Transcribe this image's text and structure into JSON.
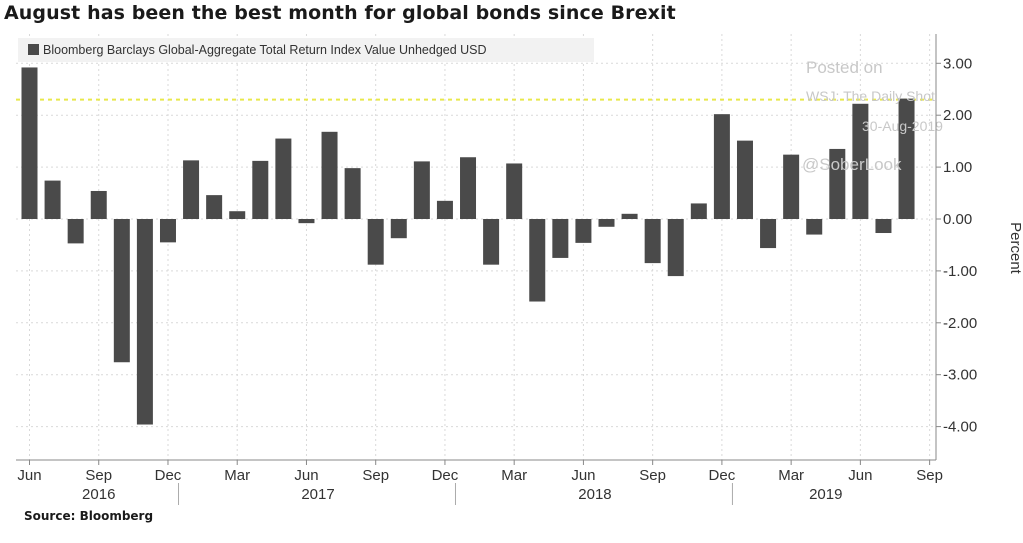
{
  "title": "August has been the best month for global bonds since Brexit",
  "source": "Source: Bloomberg",
  "watermark": {
    "line1": "Posted on",
    "line2": "WSJ: The Daily Shot",
    "line3": "30-Aug-2019",
    "line4": "@SoberLook"
  },
  "colors": {
    "bar": "#4a4a4a",
    "reference_line": "#e8e84a",
    "grid": "#d9d9d9"
  },
  "chart_data": {
    "type": "bar",
    "title": "August has been the best month for global bonds since Brexit",
    "legend": [
      "Bloomberg Barclays Global-Aggregate Total Return Index Value Unhedged USD"
    ],
    "ylabel": "Percent",
    "ylim": [
      -4.5,
      3.6
    ],
    "yticks": [
      "3.00",
      "2.00",
      "1.00",
      "0.00",
      "-1.00",
      "-2.00",
      "-3.00",
      "-4.00"
    ],
    "ytick_values": [
      3,
      2,
      1,
      0,
      -1,
      -2,
      -3,
      -4
    ],
    "reference_line": 2.3,
    "categories": [
      "Jun 2016",
      "Jul 2016",
      "Aug 2016",
      "Sep 2016",
      "Oct 2016",
      "Nov 2016",
      "Dec 2016",
      "Jan 2017",
      "Feb 2017",
      "Mar 2017",
      "Apr 2017",
      "May 2017",
      "Jun 2017",
      "Jul 2017",
      "Aug 2017",
      "Sep 2017",
      "Oct 2017",
      "Nov 2017",
      "Dec 2017",
      "Jan 2018",
      "Feb 2018",
      "Mar 2018",
      "Apr 2018",
      "May 2018",
      "Jun 2018",
      "Jul 2018",
      "Aug 2018",
      "Sep 2018",
      "Oct 2018",
      "Nov 2018",
      "Dec 2018",
      "Jan 2019",
      "Feb 2019",
      "Mar 2019",
      "Apr 2019",
      "May 2019",
      "Jun 2019",
      "Jul 2019",
      "Aug 2019"
    ],
    "values": [
      2.92,
      0.74,
      -0.47,
      0.54,
      -2.76,
      -3.96,
      -0.45,
      1.13,
      0.46,
      0.15,
      1.12,
      1.55,
      -0.08,
      1.68,
      0.98,
      -0.88,
      -0.37,
      1.11,
      0.35,
      1.19,
      -0.88,
      1.07,
      -1.59,
      -0.75,
      -0.46,
      -0.15,
      0.1,
      -0.85,
      -1.1,
      0.3,
      2.02,
      1.51,
      -0.56,
      1.24,
      -0.3,
      1.35,
      2.22,
      -0.27,
      2.32
    ],
    "x_tick_labels": [
      {
        "label": "Jun",
        "index": 0
      },
      {
        "label": "Sep",
        "index": 3
      },
      {
        "label": "Dec",
        "index": 6
      },
      {
        "label": "Mar",
        "index": 9
      },
      {
        "label": "Jun",
        "index": 12
      },
      {
        "label": "Sep",
        "index": 15
      },
      {
        "label": "Dec",
        "index": 18
      },
      {
        "label": "Mar",
        "index": 21
      },
      {
        "label": "Jun",
        "index": 24
      },
      {
        "label": "Sep",
        "index": 27
      },
      {
        "label": "Dec",
        "index": 30
      },
      {
        "label": "Mar",
        "index": 33
      },
      {
        "label": "Jun",
        "index": 36
      },
      {
        "label": "Sep",
        "index": 39
      }
    ],
    "years": [
      {
        "label": "2016",
        "start": 0,
        "end": 6
      },
      {
        "label": "2017",
        "start": 7,
        "end": 18
      },
      {
        "label": "2018",
        "start": 19,
        "end": 30
      },
      {
        "label": "2019",
        "start": 31,
        "end": 38
      }
    ]
  }
}
